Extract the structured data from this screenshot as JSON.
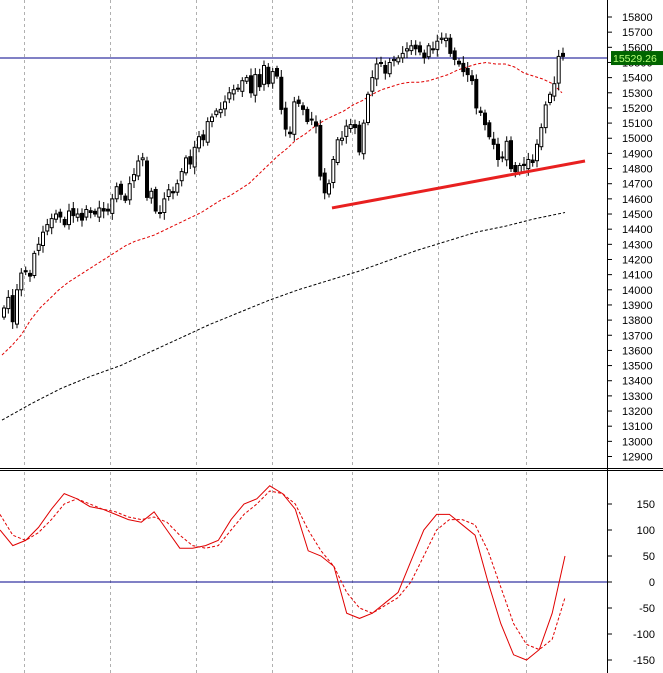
{
  "chart_data": [
    {
      "type": "candlestick",
      "grid": "vertical dashed",
      "ylim": [
        12850,
        15850
      ],
      "yticks": [
        15800,
        15700,
        15600,
        15500,
        15400,
        15300,
        15200,
        15100,
        15000,
        14900,
        14800,
        14700,
        14600,
        14500,
        14400,
        14300,
        14200,
        14100,
        14000,
        13900,
        13800,
        13700,
        13600,
        13500,
        13400,
        13300,
        13200,
        13100,
        13000,
        12900
      ],
      "current_price": 15529.26,
      "current_price_label": "15529.26",
      "horizontal_line": 15529.26,
      "trendline": {
        "from": [
          0,
          14540
        ],
        "to": [
          1,
          14850
        ],
        "color": "#e82020"
      },
      "closes": [
        13880,
        13950,
        13790,
        14000,
        14110,
        14120,
        14090,
        14240,
        14300,
        14380,
        14430,
        14470,
        14500,
        14480,
        14430,
        14520,
        14490,
        14500,
        14460,
        14530,
        14510,
        14500,
        14540,
        14520,
        14520,
        14600,
        14680,
        14630,
        14590,
        14700,
        14760,
        14850,
        14870,
        14610,
        14650,
        14520,
        14510,
        14600,
        14660,
        14640,
        14700,
        14780,
        14870,
        14830,
        14940,
        15010,
        14990,
        15110,
        15140,
        15180,
        15190,
        15240,
        15300,
        15320,
        15330,
        15380,
        15400,
        15300,
        15420,
        15340,
        15480,
        15360,
        15440,
        15410,
        15190,
        15060,
        15030,
        15240,
        15230,
        15190,
        15110,
        15120,
        15080,
        14750,
        14640,
        14700,
        14860,
        14990,
        15000,
        15080,
        15090,
        15070,
        14910,
        15100,
        15290,
        15400,
        15490,
        15500,
        15430,
        15500,
        15520,
        15530,
        15560,
        15590,
        15610,
        15590,
        15570,
        15530,
        15610,
        15590,
        15640,
        15660,
        15660,
        15560,
        15520,
        15490,
        15440,
        15420,
        15380,
        15200,
        15170,
        15090,
        15010,
        14960,
        14860,
        14870,
        14980,
        14800,
        14780,
        14820,
        14820,
        14860,
        14840,
        14960,
        15070,
        15220,
        15290,
        15360,
        15540,
        15540
      ],
      "ma_short": [
        13570,
        13630,
        13700,
        13800,
        13880,
        13940,
        14000,
        14050,
        14090,
        14130,
        14170,
        14210,
        14250,
        14290,
        14320,
        14340,
        14360,
        14390,
        14420,
        14450,
        14480,
        14510,
        14550,
        14590,
        14620,
        14660,
        14700,
        14760,
        14820,
        14880,
        14930,
        14990,
        15030,
        15080,
        15120,
        15150,
        15180,
        15220,
        15250,
        15290,
        15320,
        15340,
        15360,
        15370,
        15370,
        15380,
        15400,
        15420,
        15450,
        15470,
        15490,
        15500,
        15490,
        15490,
        15470,
        15430,
        15410,
        15390,
        15360,
        15300
      ],
      "ma_long": [
        13140,
        13250,
        13350,
        13430,
        13500,
        13590,
        13680,
        13770,
        13850,
        13930,
        14000,
        14060,
        14120,
        14190,
        14260,
        14320,
        14380,
        14420,
        14470,
        14510
      ],
      "ma_color_short": "#e00000",
      "ma_color_long": "#000000"
    },
    {
      "type": "line",
      "grid": "vertical dashed",
      "ylim": [
        -170,
        200
      ],
      "yticks": [
        150,
        100,
        50,
        0,
        -50,
        -100,
        -150
      ],
      "zero_line": 0,
      "series": [
        {
          "style": "solid",
          "color": "#e00000",
          "values": [
            100,
            70,
            80,
            105,
            140,
            170,
            160,
            145,
            140,
            130,
            120,
            115,
            135,
            100,
            65,
            65,
            70,
            80,
            120,
            150,
            160,
            185,
            170,
            140,
            60,
            50,
            30,
            -60,
            -70,
            -60,
            -40,
            -20,
            40,
            100,
            130,
            130,
            110,
            90,
            0,
            -80,
            -140,
            -150,
            -130,
            -60,
            50
          ]
        },
        {
          "style": "dashed",
          "color": "#e00000",
          "values": [
            130,
            90,
            80,
            95,
            120,
            150,
            160,
            150,
            140,
            135,
            125,
            120,
            125,
            115,
            90,
            70,
            65,
            70,
            100,
            130,
            150,
            175,
            170,
            150,
            100,
            60,
            30,
            -20,
            -50,
            -60,
            -45,
            -30,
            0,
            50,
            100,
            120,
            120,
            110,
            60,
            -10,
            -80,
            -120,
            -130,
            -110,
            -30
          ]
        }
      ]
    }
  ]
}
